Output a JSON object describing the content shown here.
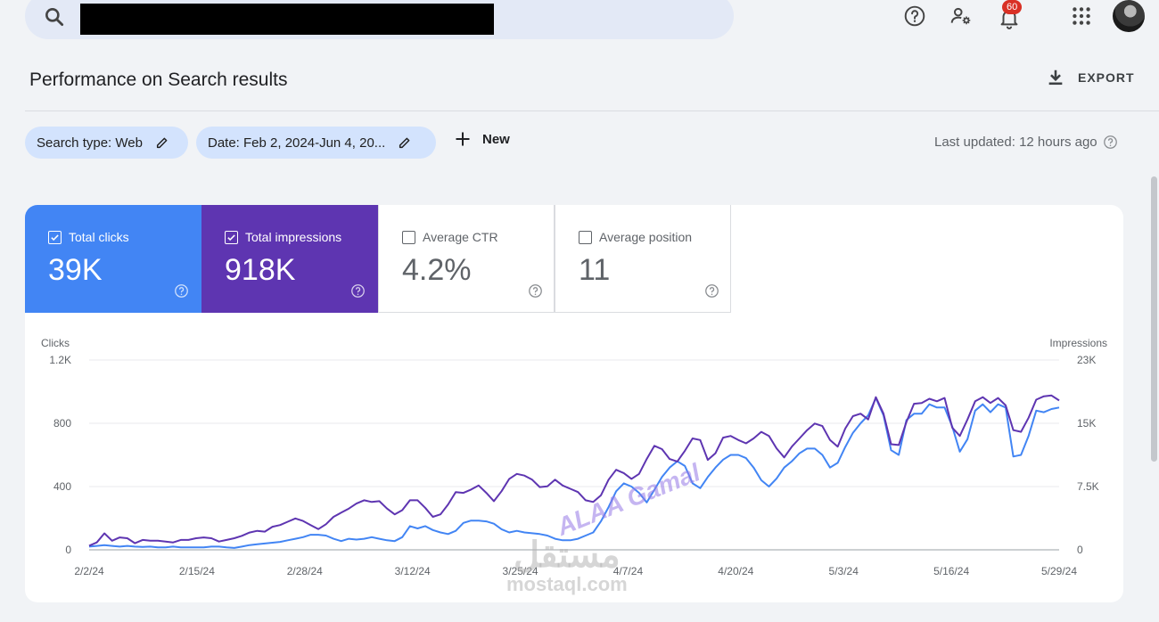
{
  "topbar": {
    "search_value": "",
    "notification_count": "60"
  },
  "header": {
    "title": "Performance on Search results",
    "export_label": "EXPORT"
  },
  "filters": {
    "search_type": "Search type: Web",
    "date": "Date: Feb 2, 2024-Jun 4, 20...",
    "new_label": "New",
    "last_updated": "Last updated: 12 hours ago"
  },
  "metrics": [
    {
      "label": "Total clicks",
      "value": "39K",
      "checked": true,
      "color": "#4285f4"
    },
    {
      "label": "Total impressions",
      "value": "918K",
      "checked": true,
      "color": "#5e35b1"
    },
    {
      "label": "Average CTR",
      "value": "4.2%",
      "checked": false
    },
    {
      "label": "Average position",
      "value": "11",
      "checked": false
    }
  ],
  "watermark": {
    "text": "ALAA Gamal",
    "logo_ar": "مستقل",
    "logo_en": "mostaql.com"
  },
  "chart_data": {
    "type": "line",
    "ylabel_left": "Clicks",
    "ylabel_right": "Impressions",
    "y_left_ticks": [
      "0",
      "400",
      "800",
      "1.2K"
    ],
    "y_right_ticks": [
      "0",
      "7.5K",
      "15K",
      "23K"
    ],
    "y_left_range": [
      0,
      1200
    ],
    "y_right_range": [
      0,
      23000
    ],
    "x_ticks": [
      "2/2/24",
      "2/15/24",
      "2/28/24",
      "3/12/24",
      "3/25/24",
      "4/7/24",
      "4/20/24",
      "5/3/24",
      "5/16/24",
      "5/29/24"
    ],
    "grid": true,
    "series": [
      {
        "name": "Clicks",
        "axis": "left",
        "color": "#4285f4",
        "values": [
          20,
          25,
          30,
          25,
          20,
          25,
          20,
          18,
          20,
          15,
          15,
          20,
          15,
          15,
          15,
          15,
          20,
          20,
          15,
          12,
          20,
          30,
          35,
          40,
          45,
          50,
          60,
          70,
          80,
          95,
          95,
          90,
          70,
          55,
          70,
          65,
          70,
          80,
          70,
          60,
          55,
          80,
          150,
          135,
          150,
          125,
          110,
          100,
          120,
          170,
          185,
          185,
          180,
          165,
          130,
          110,
          120,
          110,
          105,
          100,
          90,
          70,
          60,
          60,
          70,
          90,
          110,
          180,
          270,
          370,
          420,
          400,
          360,
          300,
          380,
          460,
          520,
          560,
          530,
          420,
          390,
          460,
          520,
          570,
          600,
          600,
          580,
          520,
          440,
          400,
          450,
          520,
          560,
          610,
          640,
          640,
          600,
          520,
          550,
          650,
          740,
          800,
          850,
          960,
          850,
          630,
          600,
          820,
          860,
          860,
          920,
          900,
          900,
          780,
          620,
          700,
          880,
          920,
          870,
          920,
          900,
          590,
          600,
          720,
          880,
          870,
          890,
          900
        ]
      },
      {
        "name": "Impressions",
        "axis": "right",
        "color": "#5e35b1",
        "values": [
          500,
          900,
          2000,
          1100,
          1500,
          1400,
          800,
          1200,
          1100,
          1100,
          1000,
          900,
          1200,
          1200,
          1400,
          1500,
          1400,
          1000,
          1200,
          1400,
          1700,
          2100,
          2300,
          2200,
          2800,
          3000,
          3400,
          3800,
          3500,
          3000,
          2500,
          3100,
          4000,
          4500,
          5000,
          5600,
          6000,
          5800,
          5900,
          5000,
          4300,
          4800,
          6000,
          6000,
          5100,
          4000,
          4300,
          5500,
          7000,
          6900,
          7300,
          7800,
          6900,
          5900,
          7100,
          8600,
          9200,
          9000,
          8500,
          7600,
          7700,
          8500,
          7800,
          7400,
          7000,
          6000,
          5800,
          6600,
          8500,
          9700,
          9300,
          8600,
          9200,
          11000,
          12600,
          12200,
          11000,
          10700,
          12000,
          13500,
          13300,
          10900,
          11700,
          13600,
          13800,
          13300,
          12900,
          13500,
          14300,
          13800,
          12300,
          11200,
          12500,
          13500,
          14500,
          15300,
          15000,
          13300,
          12500,
          14700,
          16200,
          16500,
          15800,
          18500,
          16500,
          12800,
          12700,
          15500,
          17700,
          17800,
          18300,
          18000,
          18400,
          14800,
          13800,
          15800,
          18000,
          18500,
          17800,
          18400,
          17500,
          14500,
          14300,
          16000,
          18200,
          18600,
          18700,
          18100
        ]
      }
    ]
  }
}
